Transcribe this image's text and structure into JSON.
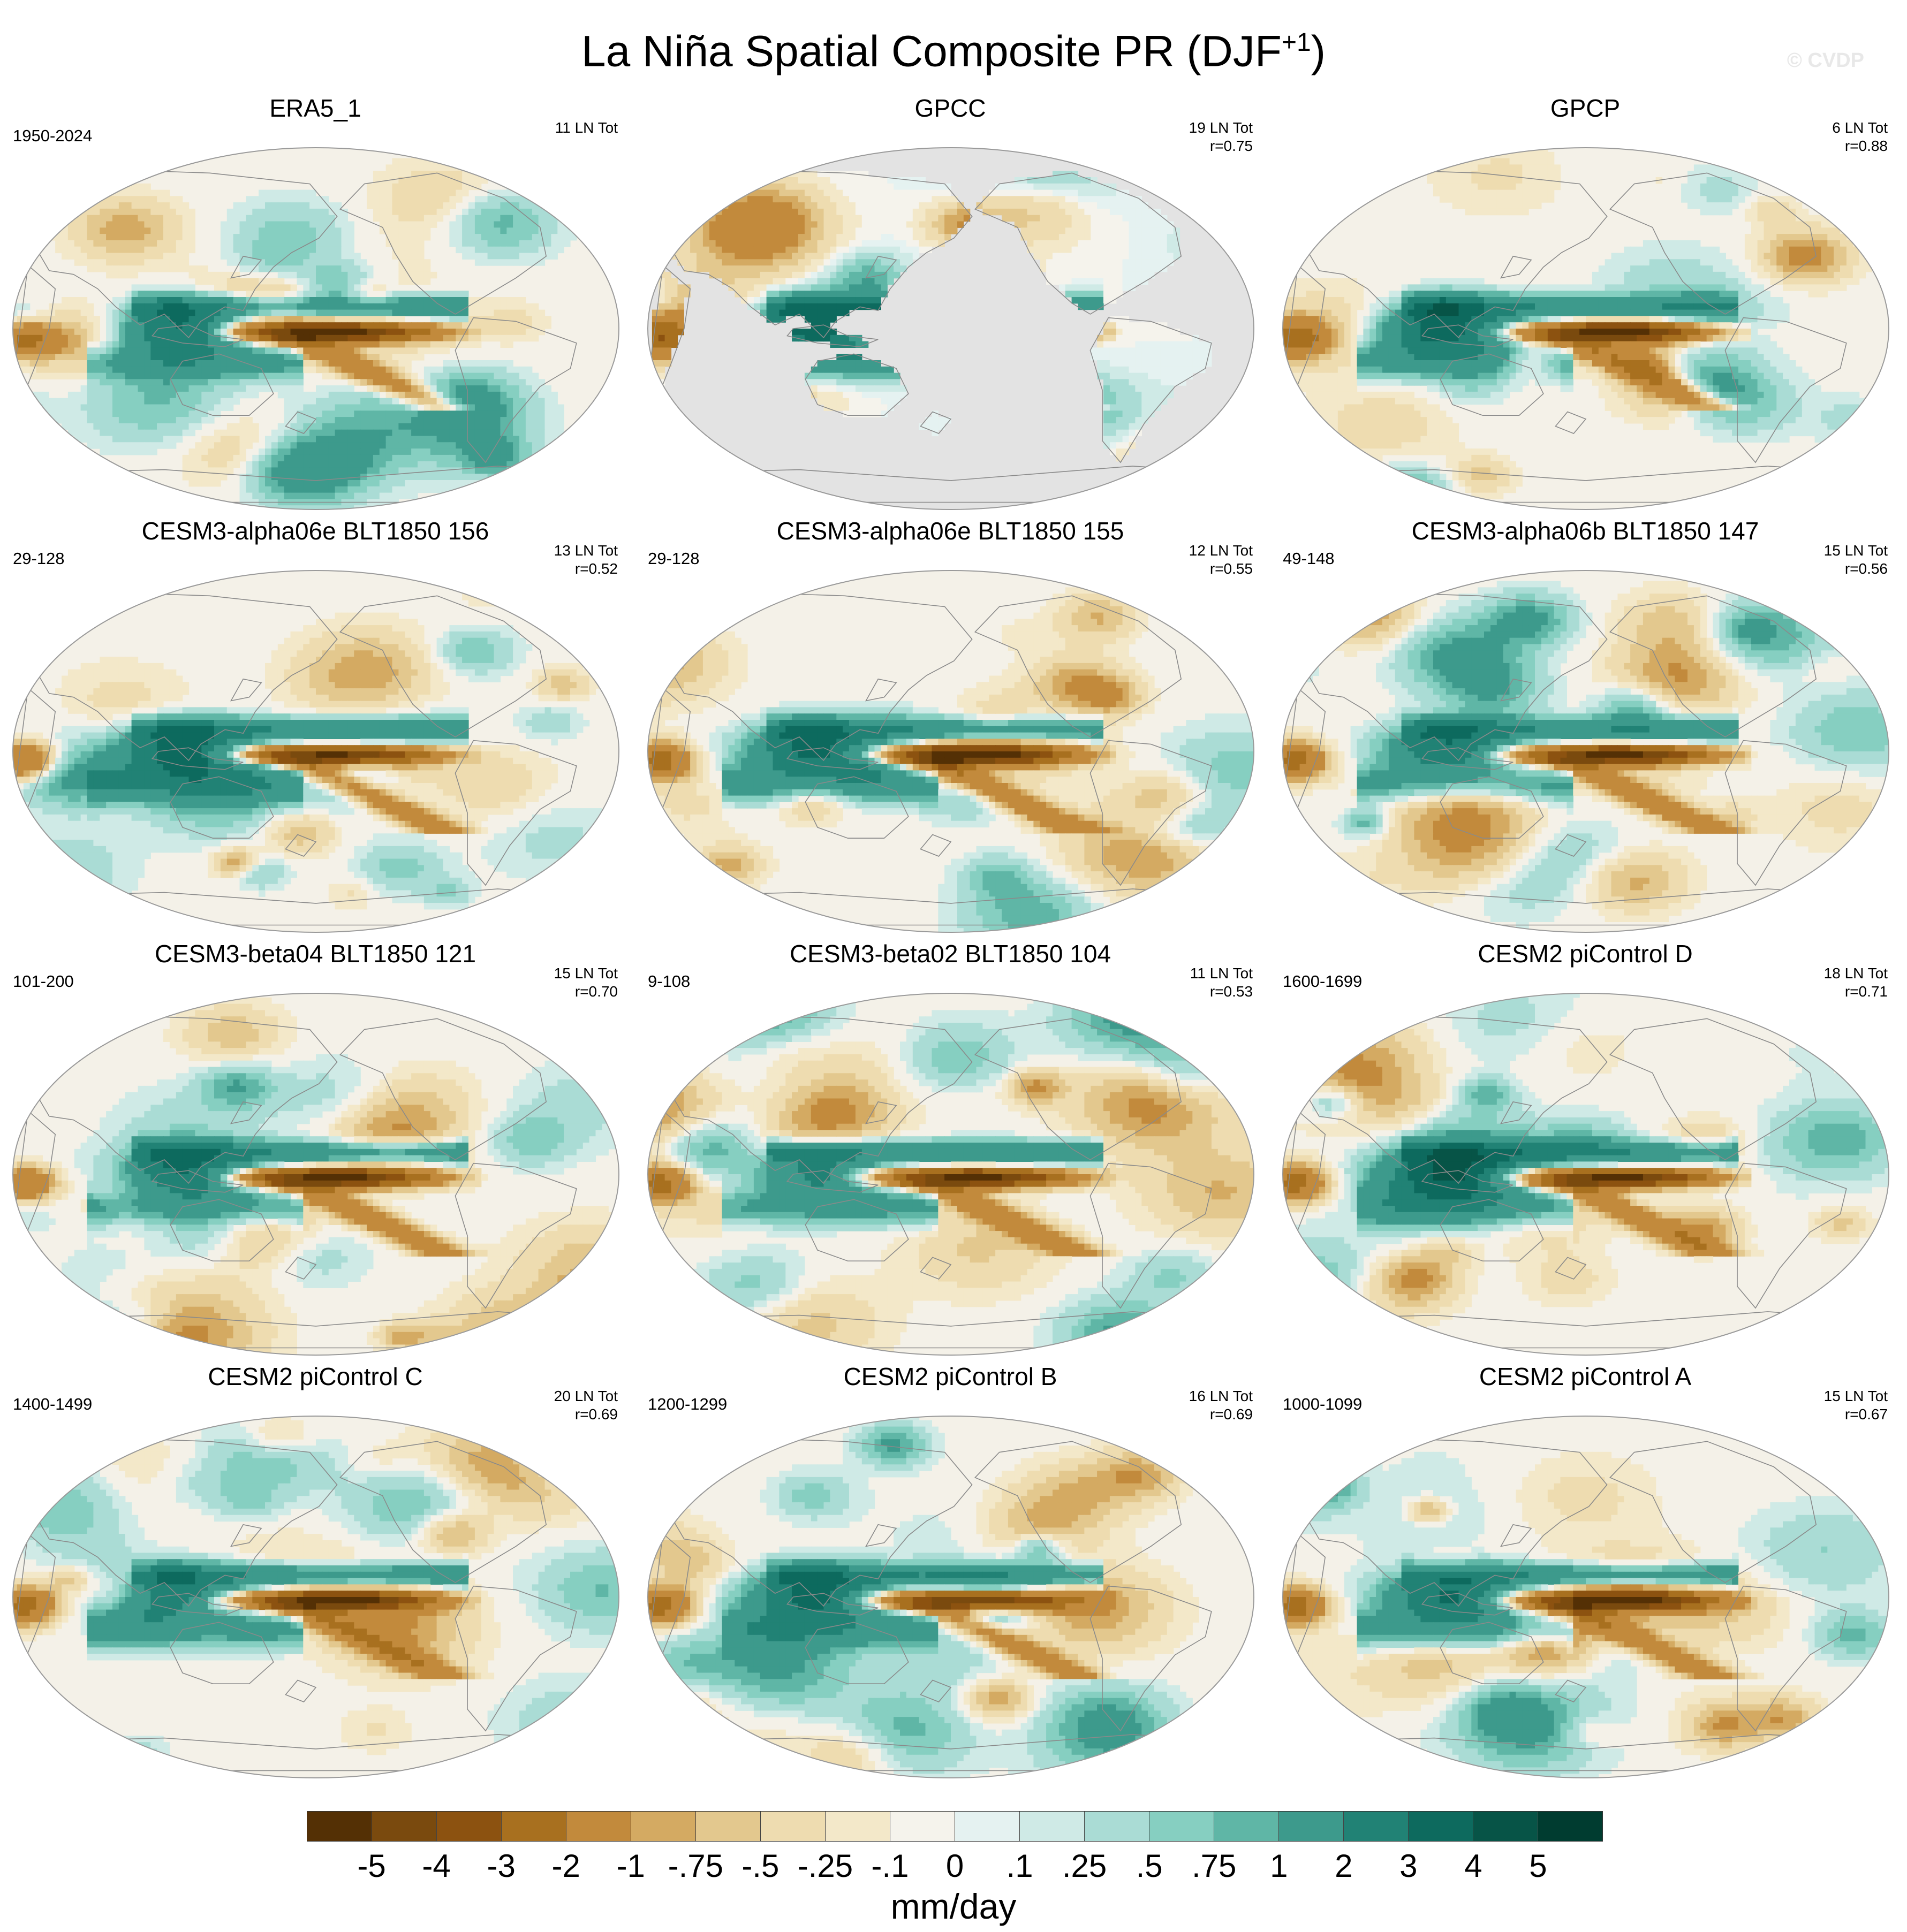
{
  "title": "La Niña Spatial Composite PR (DJF",
  "title_superscript": "+1",
  "title_close": ")",
  "watermark": "© CVDP",
  "panels": [
    {
      "title": "ERA5_1",
      "years": "1950-2024",
      "stats": [
        "11 LN Tot"
      ],
      "no_data_mask": false
    },
    {
      "title": "GPCC",
      "years": "",
      "stats": [
        "19 LN Tot",
        "r=0.75"
      ],
      "no_data_mask": true
    },
    {
      "title": "GPCP",
      "years": "",
      "stats": [
        "6 LN Tot",
        "r=0.88"
      ],
      "no_data_mask": false
    },
    {
      "title": "CESM3-alpha06e BLT1850 156",
      "years": "29-128",
      "stats": [
        "13 LN Tot",
        "r=0.52"
      ],
      "no_data_mask": false
    },
    {
      "title": "CESM3-alpha06e BLT1850 155",
      "years": "29-128",
      "stats": [
        "12 LN Tot",
        "r=0.55"
      ],
      "no_data_mask": false
    },
    {
      "title": "CESM3-alpha06b BLT1850 147",
      "years": "49-148",
      "stats": [
        "15 LN Tot",
        "r=0.56"
      ],
      "no_data_mask": false
    },
    {
      "title": "CESM3-beta04 BLT1850 121",
      "years": "101-200",
      "stats": [
        "15 LN Tot",
        "r=0.70"
      ],
      "no_data_mask": false
    },
    {
      "title": "CESM3-beta02 BLT1850 104",
      "years": "9-108",
      "stats": [
        "11 LN Tot",
        "r=0.53"
      ],
      "no_data_mask": false
    },
    {
      "title": "CESM2 piControl D",
      "years": "1600-1699",
      "stats": [
        "18 LN Tot",
        "r=0.71"
      ],
      "no_data_mask": false
    },
    {
      "title": "CESM2 piControl C",
      "years": "1400-1499",
      "stats": [
        "20 LN Tot",
        "r=0.69"
      ],
      "no_data_mask": false
    },
    {
      "title": "CESM2 piControl B",
      "years": "1200-1299",
      "stats": [
        "16 LN Tot",
        "r=0.69"
      ],
      "no_data_mask": false
    },
    {
      "title": "CESM2 piControl A",
      "years": "1000-1099",
      "stats": [
        "15 LN Tot",
        "r=0.67"
      ],
      "no_data_mask": false
    }
  ],
  "colorbar": {
    "units": "mm/day",
    "labels": [
      "-5",
      "-4",
      "-3",
      "-2",
      "-1",
      "-.75",
      "-.5",
      "-.25",
      "-.1",
      "0",
      ".1",
      ".25",
      ".5",
      ".75",
      "1",
      "2",
      "3",
      "4",
      "5"
    ],
    "colors": [
      "#543005",
      "#7a4a0e",
      "#8c5210",
      "#a8701f",
      "#c28a3c",
      "#d4aa62",
      "#e3c88e",
      "#eedcb0",
      "#f3e8c9",
      "#f5f3ec",
      "#e5f2f1",
      "#cfeae6",
      "#aadcd5",
      "#86cfc1",
      "#5fb6a6",
      "#3d9a8c",
      "#218275",
      "#0d6a5e",
      "#075447",
      "#003c30"
    ]
  },
  "map_colors": {
    "background": "#f4f1e8",
    "mask": "#e3e3e3",
    "coast": "#8a8a8a",
    "outline": "#9a9a9a"
  }
}
